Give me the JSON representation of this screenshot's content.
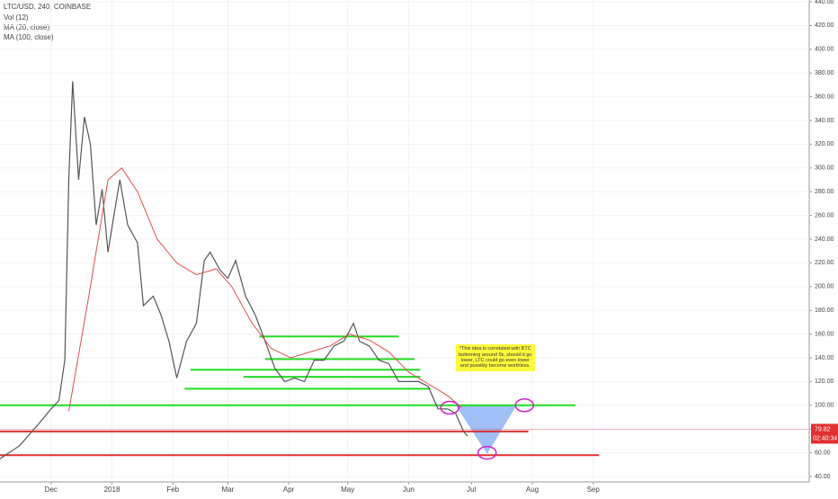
{
  "chart_data": {
    "type": "line",
    "title": "LTC/USD, 240, COINBASE",
    "indicators": [
      "Vol (12)",
      "MA (20, close)",
      "MA (100, close)"
    ],
    "xlim": [
      0,
      412
    ],
    "xticks": [
      {
        "value": 26,
        "label": "Dec"
      },
      {
        "value": 57,
        "label": "2018"
      },
      {
        "value": 88,
        "label": "Feb"
      },
      {
        "value": 116,
        "label": "Mar"
      },
      {
        "value": 147,
        "label": "Apr"
      },
      {
        "value": 177,
        "label": "May"
      },
      {
        "value": 208,
        "label": "Jun"
      },
      {
        "value": 240,
        "label": "Jul"
      },
      {
        "value": 271,
        "label": "Aug"
      },
      {
        "value": 302,
        "label": "Sep"
      }
    ],
    "ylim": [
      40,
      440
    ],
    "yticks": [
      {
        "value": 40,
        "label": "40.00"
      },
      {
        "value": 60,
        "label": "60.00"
      },
      {
        "value": 80,
        "label": "80.00"
      },
      {
        "value": 100,
        "label": "100.00"
      },
      {
        "value": 120,
        "label": "120.00"
      },
      {
        "value": 140,
        "label": "140.00"
      },
      {
        "value": 160,
        "label": "160.00"
      },
      {
        "value": 180,
        "label": "180.00"
      },
      {
        "value": 200,
        "label": "200.00"
      },
      {
        "value": 220,
        "label": "220.00"
      },
      {
        "value": 240,
        "label": "240.00"
      },
      {
        "value": 260,
        "label": "260.00"
      },
      {
        "value": 280,
        "label": "280.00"
      },
      {
        "value": 300,
        "label": "300.00"
      },
      {
        "value": 320,
        "label": "320.00"
      },
      {
        "value": 340,
        "label": "340.00"
      },
      {
        "value": 360,
        "label": "360.00"
      },
      {
        "value": 380,
        "label": "380.00"
      },
      {
        "value": 400,
        "label": "400.00"
      },
      {
        "value": 420,
        "label": "420.00"
      },
      {
        "value": 440,
        "label": "440.00"
      }
    ],
    "grid": true,
    "series": [
      {
        "color": "#555555",
        "x": [
          0,
          10,
          20,
          26,
          30,
          33,
          35,
          37,
          40,
          43,
          46,
          49,
          52,
          55,
          58,
          61,
          65,
          70,
          73,
          78,
          82,
          86,
          90,
          95,
          100,
          104,
          107,
          112,
          116,
          120,
          125,
          130,
          135,
          140,
          145,
          150,
          155,
          160,
          165,
          170,
          175,
          180,
          183,
          188,
          193,
          198,
          203,
          208,
          213,
          218,
          223,
          228,
          232,
          236,
          238
        ],
        "values": [
          55,
          66,
          85,
          97,
          104,
          138,
          290,
          373,
          290,
          343,
          320,
          252,
          282,
          229,
          260,
          290,
          252,
          237,
          184,
          192,
          176,
          154,
          123,
          154,
          169,
          222,
          229,
          214,
          207,
          222,
          192,
          176,
          154,
          131,
          120,
          123,
          120,
          138,
          138,
          150,
          154,
          169,
          154,
          150,
          138,
          135,
          120,
          120,
          120,
          116,
          97,
          97,
          93,
          78,
          74
        ]
      },
      {
        "color": "#e34c4c",
        "x": [
          35,
          45,
          55,
          62,
          70,
          80,
          90,
          100,
          110,
          118,
          128,
          138,
          148,
          158,
          168,
          178,
          188,
          198,
          208,
          218,
          228,
          235
        ],
        "values": [
          95,
          190,
          290,
          300,
          280,
          240,
          220,
          210,
          215,
          200,
          170,
          148,
          140,
          145,
          150,
          160,
          155,
          145,
          128,
          118,
          108,
          98
        ]
      }
    ],
    "levels": [
      {
        "value": 100,
        "x": [
          0,
          293
        ],
        "color": "#22dd22"
      },
      {
        "value": 158,
        "x": [
          132,
          203
        ],
        "color": "#22dd22"
      },
      {
        "value": 139,
        "x": [
          135,
          211
        ],
        "color": "#22dd22"
      },
      {
        "value": 130,
        "x": [
          97,
          214
        ],
        "color": "#22dd22"
      },
      {
        "value": 124,
        "x": [
          124,
          214
        ],
        "color": "#22dd22"
      },
      {
        "value": 114,
        "x": [
          94,
          219
        ],
        "color": "#22dd22"
      },
      {
        "value": 78,
        "x": [
          0,
          269
        ],
        "color": "#e03030"
      },
      {
        "value": 58,
        "x": [
          0,
          305
        ],
        "color": "#e03030"
      }
    ],
    "projection": {
      "x": [
        232,
        263,
        248
      ],
      "y": [
        100,
        100,
        59
      ],
      "color": "#8fb4f5"
    },
    "circles": [
      {
        "x": 229,
        "y": 98
      },
      {
        "x": 267,
        "y": 100
      },
      {
        "x": 248,
        "y": 60
      }
    ],
    "note": {
      "x": 232,
      "y": 151,
      "text": "*This idea is correlated with BTC bottoming around 5k, should it go lower, LTC could go even lower and possibly become worthless."
    },
    "last_price": 79.82,
    "countdown": "02:40:34"
  }
}
